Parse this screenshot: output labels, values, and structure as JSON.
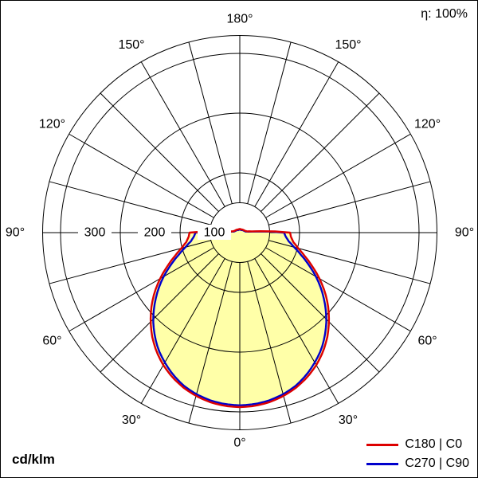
{
  "meta": {
    "efficiency_label": "η: 100%",
    "unit_label": "cd/klm"
  },
  "legend": [
    {
      "label": "C180 | C0",
      "color": "#dd0000"
    },
    {
      "label": "C270 | C90",
      "color": "#0000cc"
    }
  ],
  "chart_data": {
    "type": "polar_intensity_distribution",
    "unit": "cd/klm",
    "efficiency_percent": 100,
    "r_max": 330,
    "inner_ring_value": 50,
    "angle_step_deg": 15,
    "radial_ticks": [
      {
        "value": 100,
        "text": "100"
      },
      {
        "value": 200,
        "text": "200"
      },
      {
        "value": 300,
        "text": "300"
      }
    ],
    "angle_labels": [
      {
        "deg": 0,
        "text": "0°"
      },
      {
        "deg": 30,
        "text": "30°"
      },
      {
        "deg": 60,
        "text": "60°"
      },
      {
        "deg": 90,
        "text": "90°"
      },
      {
        "deg": 120,
        "text": "120°"
      },
      {
        "deg": 150,
        "text": "150°"
      },
      {
        "deg": 180,
        "text": "180°"
      }
    ],
    "fill_color": "#ffffa8",
    "series": [
      {
        "name": "C180 | C0",
        "color": "#dd0000",
        "angles_deg": [
          0,
          5,
          10,
          15,
          20,
          25,
          30,
          35,
          40,
          45,
          50,
          55,
          60,
          65,
          70,
          75,
          80,
          85,
          90,
          95,
          100,
          110,
          120,
          135,
          150,
          165,
          180
        ],
        "values": [
          292,
          291,
          288,
          283,
          276,
          267,
          256,
          243,
          228,
          211,
          193,
          174,
          154,
          134,
          116,
          101,
          91,
          86,
          84,
          22,
          12,
          9,
          8,
          7,
          6,
          6,
          6
        ]
      },
      {
        "name": "C270 | C90",
        "color": "#0000cc",
        "angles_deg": [
          0,
          5,
          10,
          15,
          20,
          25,
          30,
          35,
          40,
          45,
          50,
          55,
          60,
          65,
          70,
          75,
          80,
          85,
          90,
          95,
          100,
          110,
          120,
          135,
          150,
          165,
          180
        ],
        "values": [
          289,
          288,
          285,
          280,
          273,
          263,
          251,
          238,
          222,
          205,
          186,
          167,
          147,
          127,
          109,
          94,
          83,
          77,
          74,
          16,
          10,
          8,
          7,
          6,
          5,
          5,
          5
        ]
      }
    ]
  }
}
